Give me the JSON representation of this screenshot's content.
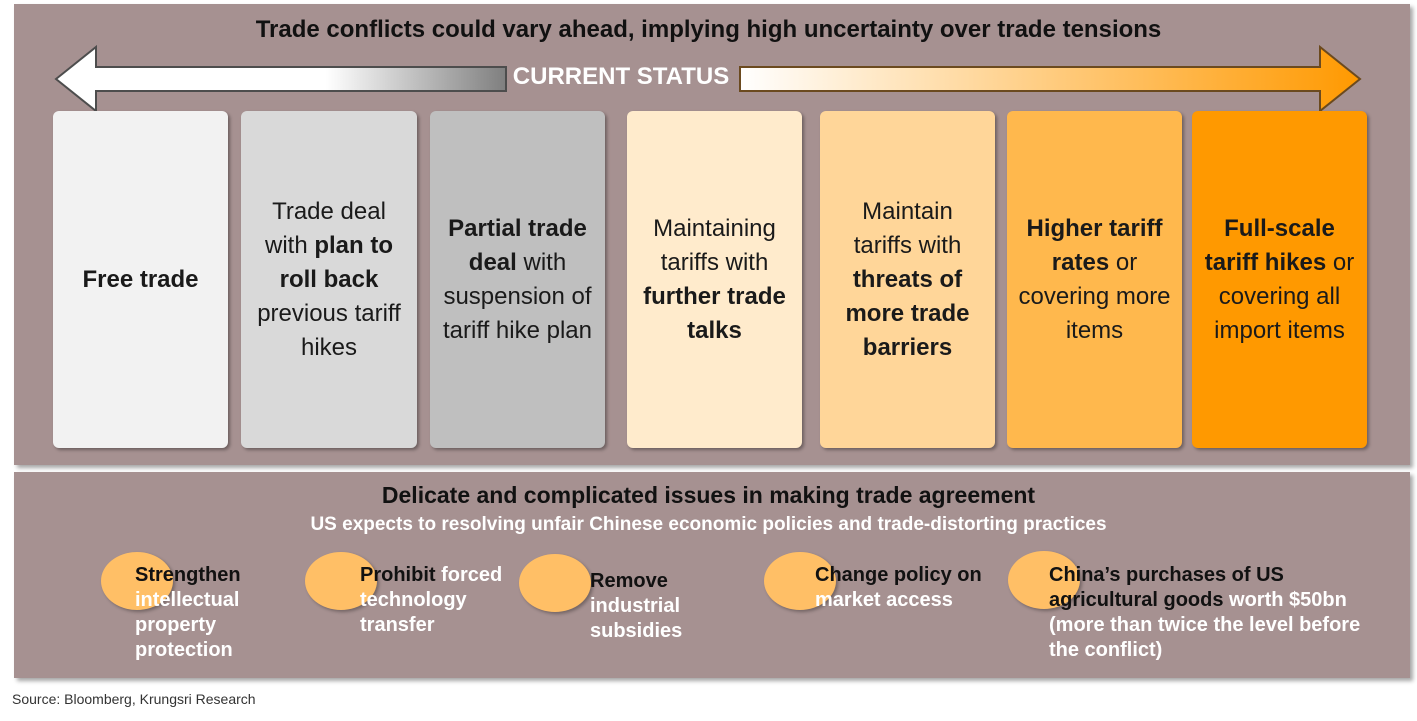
{
  "header": {
    "title": "Trade conflicts could vary ahead, implying high uncertainty over trade tensions",
    "current_status": "CURRENT STATUS"
  },
  "colors": {
    "panel": "#a69191",
    "orange_accent": "#ff9900",
    "bubble": "#ffbf66"
  },
  "scenarios": [
    {
      "id": "s1",
      "color": "#f2f2f2",
      "parts": [
        {
          "b": "Free trade"
        }
      ]
    },
    {
      "id": "s2",
      "color": "#d9d9d9",
      "parts": [
        {
          "t": "Trade deal with "
        },
        {
          "b": "plan to roll back"
        },
        {
          "t": " previous tariff hikes"
        }
      ]
    },
    {
      "id": "s3",
      "color": "#bfbfbf",
      "parts": [
        {
          "b": "Partial trade deal"
        },
        {
          "t": " with suspension of tariff hike plan"
        }
      ]
    },
    {
      "id": "s4",
      "color": "#ffebcc",
      "parts": [
        {
          "t": "Maintaining tariffs with "
        },
        {
          "b": "further trade talks"
        }
      ]
    },
    {
      "id": "s5",
      "color": "#ffd699",
      "parts": [
        {
          "t": "Maintain tariffs with "
        },
        {
          "b": "threats of more trade barriers"
        }
      ]
    },
    {
      "id": "s6",
      "color": "#ffb84d",
      "parts": [
        {
          "b": "Higher tariff rates"
        },
        {
          "t": " or covering more items"
        }
      ]
    },
    {
      "id": "s7",
      "color": "#ff9900",
      "parts": [
        {
          "b": "Full-scale tariff hikes"
        },
        {
          "t": " or covering all import items"
        }
      ]
    }
  ],
  "agreement": {
    "title": "Delicate and complicated issues in making trade agreement",
    "subtitle": "US expects to resolving unfair Chinese economic policies and trade-distorting practices",
    "issues": [
      {
        "dark": "Strengthen",
        "rest": "intellectual property protection"
      },
      {
        "dark": "Prohibit",
        "rest": "forced technology transfer"
      },
      {
        "dark": "Remove",
        "rest": "industrial subsidies"
      },
      {
        "dark": "Change policy on",
        "rest": "market access"
      },
      {
        "dark": "China’s purchases of US agricultural goods",
        "rest": "worth $50bn (more than twice the level before the conflict)"
      }
    ]
  },
  "source": "Source: Bloomberg, Krungsri Research"
}
